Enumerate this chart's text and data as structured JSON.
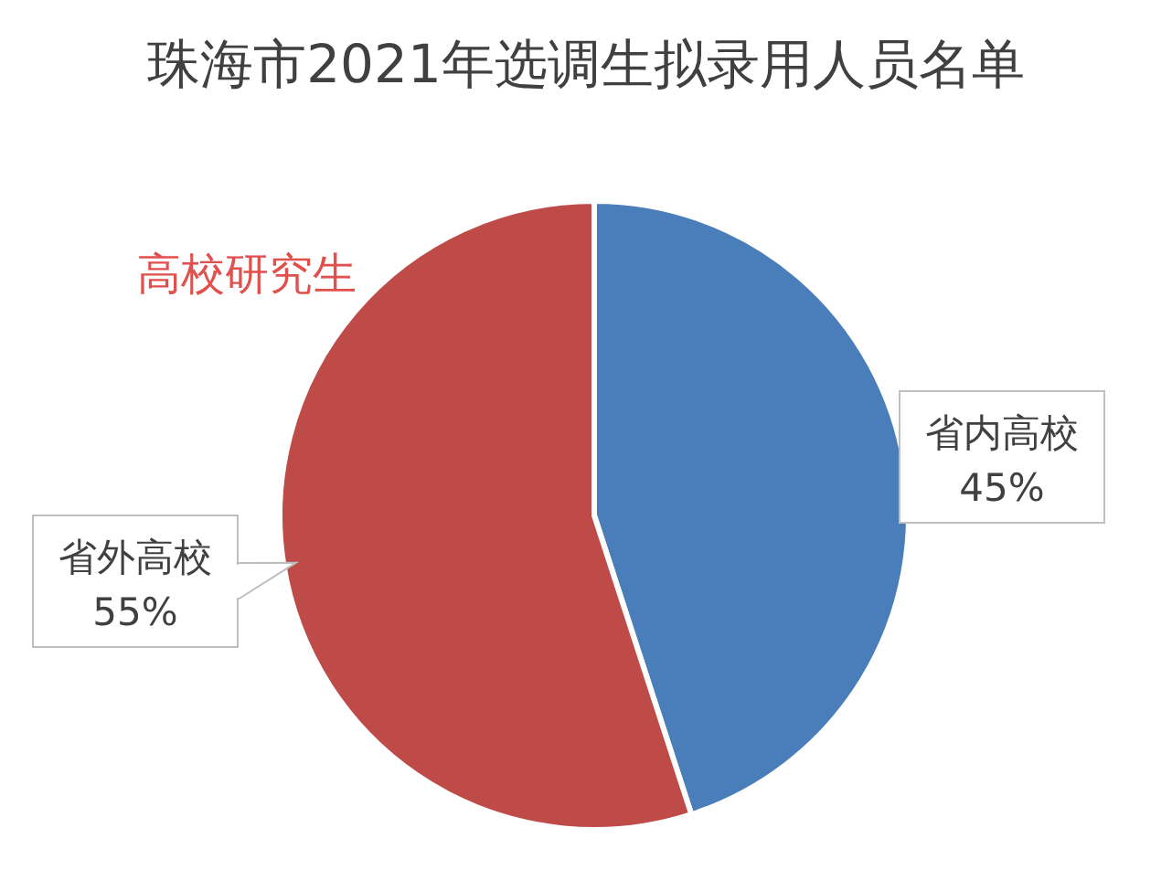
{
  "chart_data": {
    "type": "pie",
    "title": "珠海市2021年选调生拟录用人员名单",
    "categories": [
      "省内高校",
      "省外高校"
    ],
    "values": [
      45,
      55
    ],
    "colors": [
      "#4a7ebb",
      "#be4b48"
    ],
    "value_labels": [
      "45%",
      "55%"
    ],
    "annotations": [
      "高校研究生"
    ]
  }
}
